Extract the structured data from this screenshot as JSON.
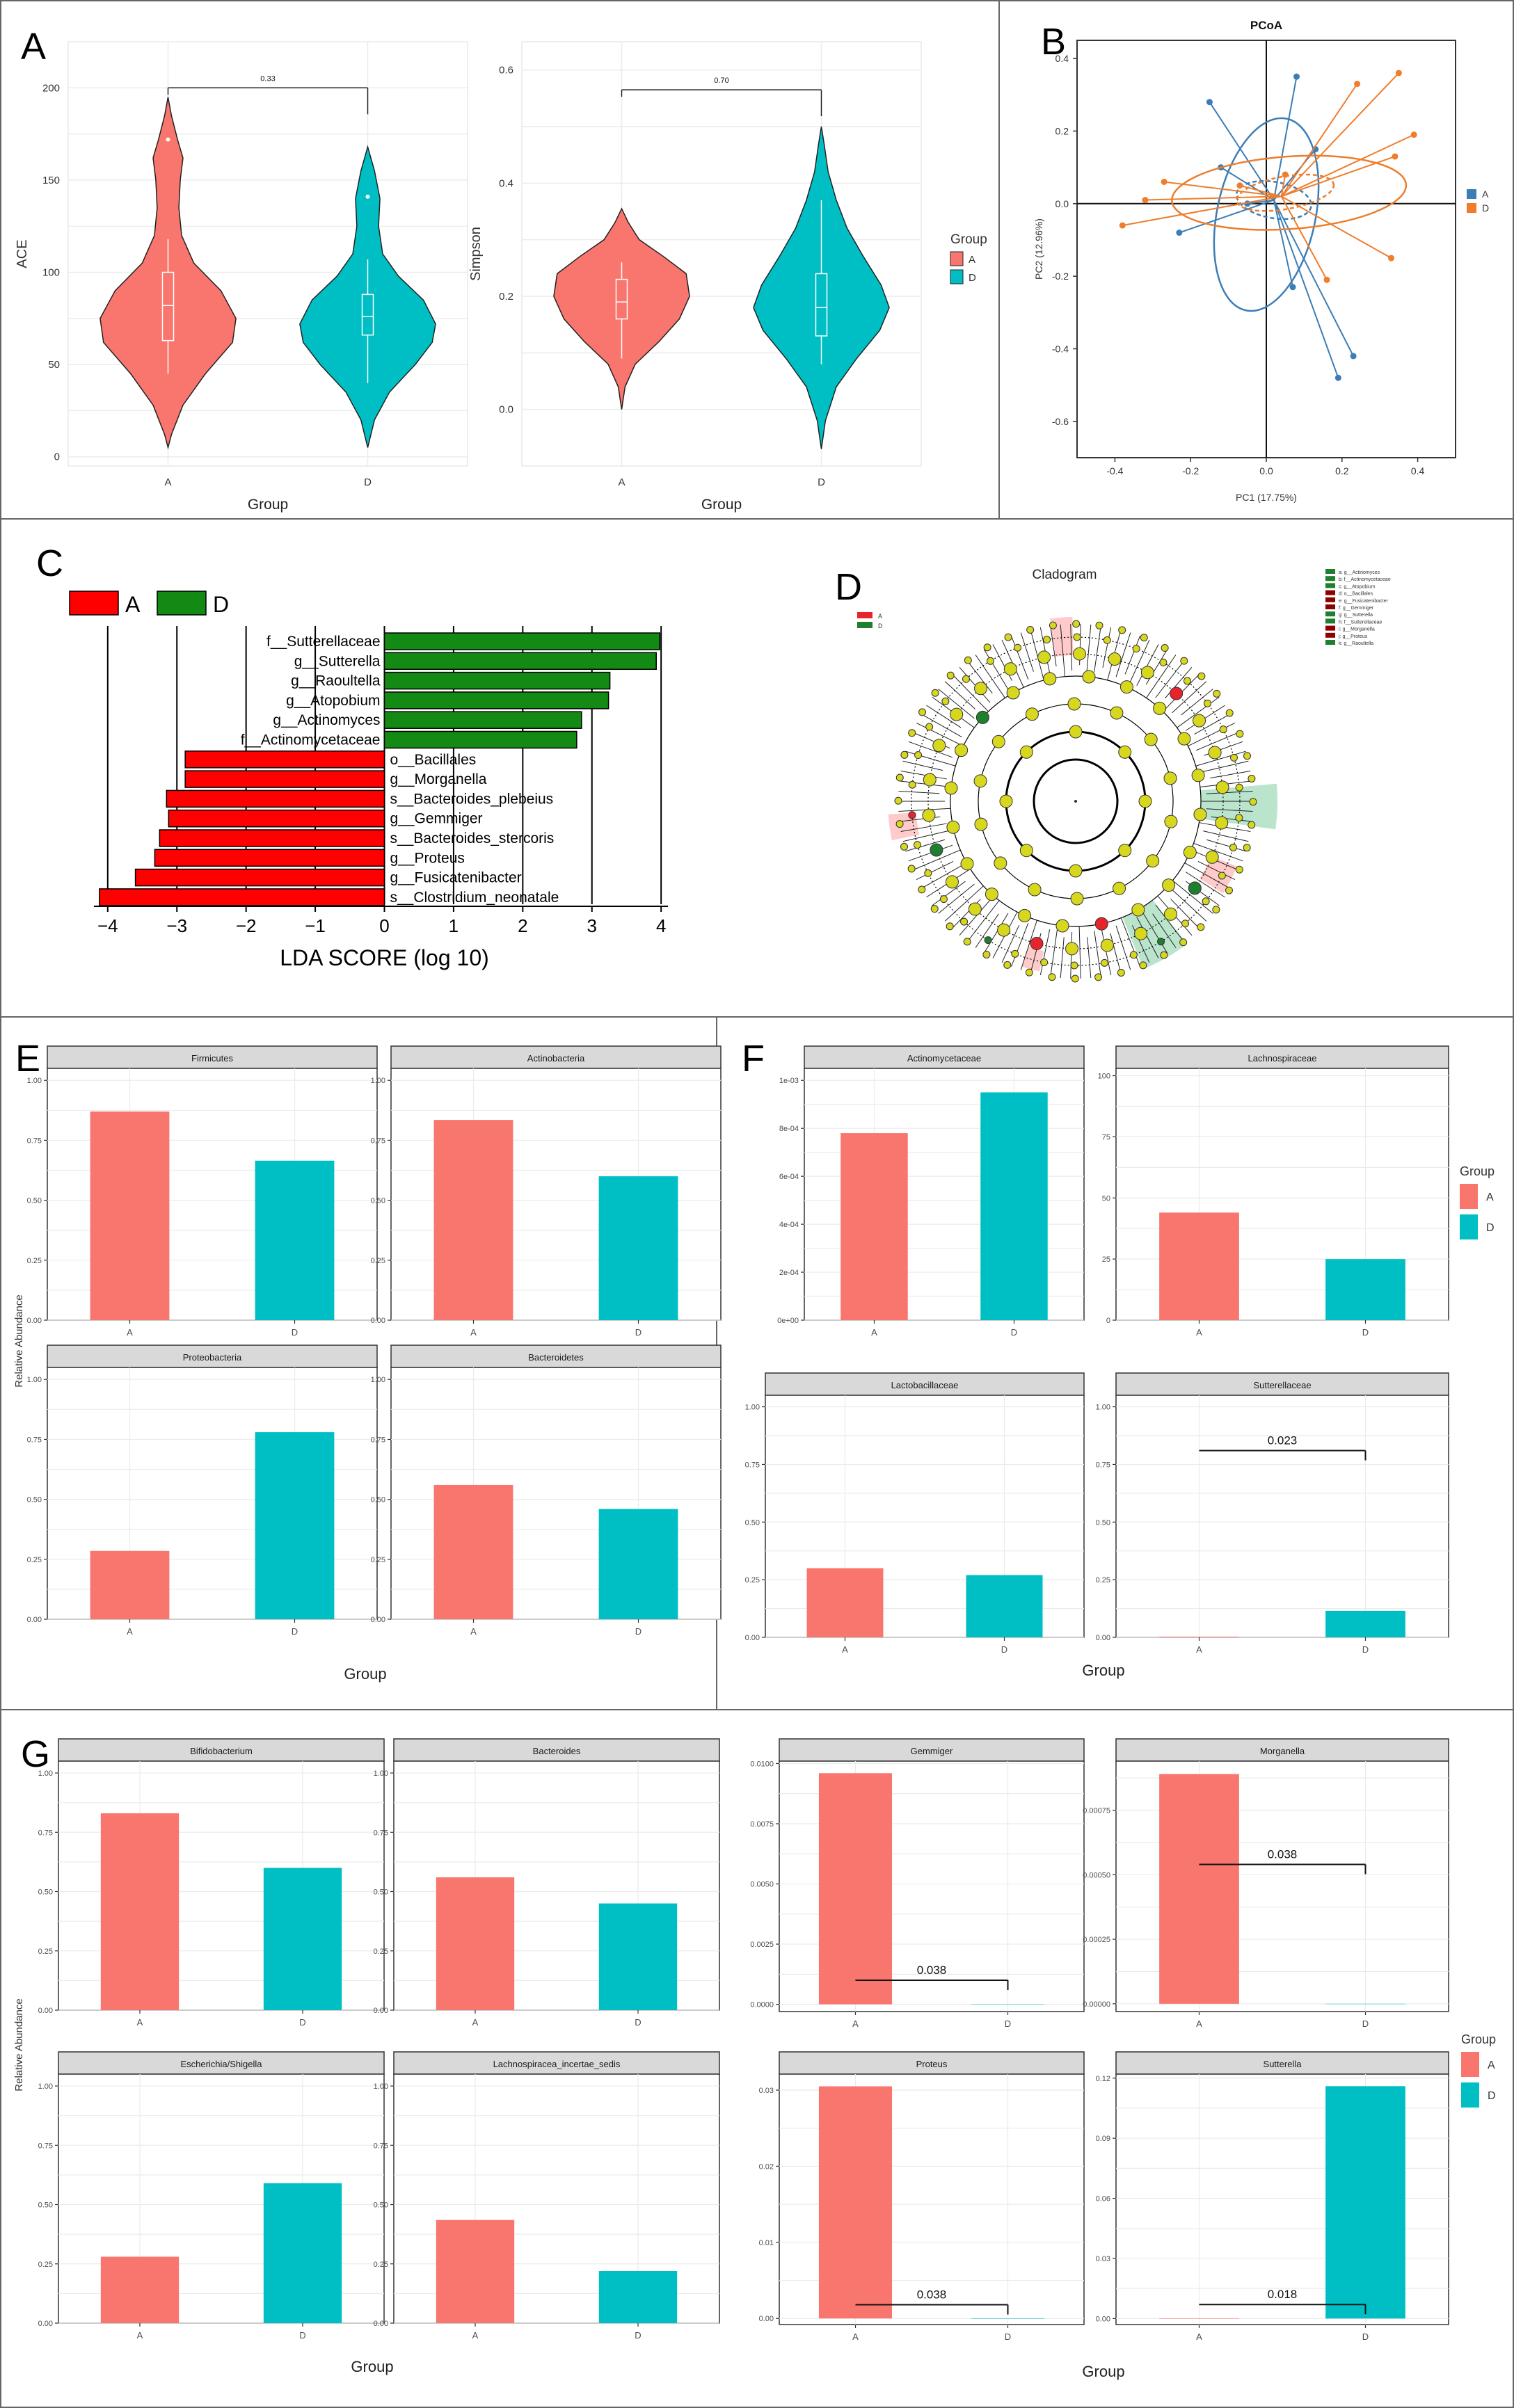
{
  "colors": {
    "A": "#F8766D",
    "D": "#00BFC4",
    "pcoaA": "#3C7DB6",
    "pcoaD": "#EE7D2C",
    "ldaA": "#FF0000",
    "ldaD": "#138A13"
  },
  "panel_letters": [
    "A",
    "B",
    "C",
    "D",
    "E",
    "F",
    "G"
  ],
  "chart_data": [
    {
      "id": "A1",
      "type": "violin",
      "ylabel": "ACE",
      "xlabel": "Group",
      "categories": [
        "A",
        "D"
      ],
      "ylim": [
        -5,
        225
      ],
      "yticks": [
        0,
        50,
        100,
        150,
        200
      ],
      "yticklabels": [
        "0",
        "50",
        "100",
        "150",
        "200"
      ],
      "medians": [
        82,
        76
      ],
      "q1": [
        63,
        66
      ],
      "q3": [
        100,
        88
      ],
      "whisker_low": [
        45,
        40
      ],
      "whisker_high": [
        118,
        107
      ],
      "outliers": [
        [
          172
        ],
        [
          141
        ]
      ],
      "p_value": "0.33",
      "bracket_y": 200
    },
    {
      "id": "A2",
      "type": "violin",
      "ylabel": "Simpson",
      "xlabel": "Group",
      "categories": [
        "A",
        "D"
      ],
      "ylim": [
        -0.1,
        0.65
      ],
      "yticks": [
        0.0,
        0.2,
        0.4,
        0.6
      ],
      "yticklabels": [
        "0.0",
        "0.2",
        "0.4",
        "0.6"
      ],
      "medians": [
        0.19,
        0.18
      ],
      "q1": [
        0.16,
        0.13
      ],
      "q3": [
        0.23,
        0.24
      ],
      "whisker_low": [
        0.09,
        0.08
      ],
      "whisker_high": [
        0.26,
        0.37
      ],
      "outliers": [
        [],
        []
      ],
      "p_value": "0.70",
      "bracket_y": 0.565,
      "legend": {
        "title": "Group",
        "entries": [
          "A",
          "D"
        ]
      }
    },
    {
      "id": "B",
      "type": "scatter",
      "title": "PCoA",
      "xlabel": "PC1  (17.75%)",
      "ylabel": "PC2  (12.96%)",
      "xlim": [
        -0.5,
        0.5
      ],
      "ylim": [
        -0.7,
        0.45
      ],
      "xticks": [
        -0.4,
        -0.2,
        0.0,
        0.2,
        0.4
      ],
      "xticklabels": [
        "-0.4",
        "-0.2",
        "0.0",
        "0.2",
        "0.4"
      ],
      "yticks": [
        -0.6,
        -0.4,
        -0.2,
        0.0,
        0.2,
        0.4
      ],
      "yticklabels": [
        "-0.6",
        "-0.4",
        "-0.2",
        "0.0",
        "0.2",
        "0.4"
      ],
      "series": [
        {
          "name": "A",
          "centroid": [
            0.02,
            0.01
          ],
          "points": [
            [
              -0.15,
              0.28
            ],
            [
              0.08,
              0.35
            ],
            [
              -0.12,
              0.1
            ],
            [
              -0.23,
              -0.08
            ],
            [
              0.13,
              0.15
            ],
            [
              0.23,
              -0.42
            ],
            [
              0.19,
              -0.48
            ],
            [
              0.07,
              -0.23
            ],
            [
              -0.05,
              0.0
            ]
          ]
        },
        {
          "name": "D",
          "centroid": [
            0.04,
            0.02
          ],
          "points": [
            [
              -0.38,
              -0.06
            ],
            [
              -0.27,
              0.06
            ],
            [
              -0.32,
              0.01
            ],
            [
              0.35,
              0.36
            ],
            [
              0.39,
              0.19
            ],
            [
              0.24,
              0.33
            ],
            [
              0.34,
              0.13
            ],
            [
              0.33,
              -0.15
            ],
            [
              0.16,
              -0.21
            ],
            [
              0.05,
              0.08
            ],
            [
              -0.07,
              0.05
            ]
          ]
        }
      ],
      "legend": {
        "entries": [
          "A",
          "D"
        ]
      }
    },
    {
      "id": "C",
      "type": "bar",
      "orientation": "horizontal",
      "xlabel": "LDA SCORE (log 10)",
      "xlim": [
        -4.3,
        4.3
      ],
      "xticks": [
        -4,
        -3,
        -2,
        -1,
        0,
        1,
        2,
        3,
        4
      ],
      "xticklabels": [
        "−4",
        "−3",
        "−2",
        "−1",
        "0",
        "1",
        "2",
        "3",
        "4"
      ],
      "legend": {
        "entries": [
          "A",
          "D"
        ]
      },
      "categories": [
        "f__Sutterellaceae",
        "g__Sutterella",
        "g__Raoultella",
        "g__Atopobium",
        "g__Actinomyces",
        "f__Actinomycetaceae",
        "o__Bacillales",
        "g__Morganella",
        "s__Bacteroides_plebeius",
        "g__Gemmiger",
        "s__Bacteroides_stercoris",
        "g__Proteus",
        "g__Fusicatenibacter",
        "s__Clostridium_neonatale"
      ],
      "values": [
        3.98,
        3.93,
        3.26,
        3.24,
        2.85,
        2.78,
        -2.88,
        -2.88,
        -3.15,
        -3.12,
        -3.25,
        -3.32,
        -3.6,
        -4.12
      ],
      "groups": [
        "D",
        "D",
        "D",
        "D",
        "D",
        "D",
        "A",
        "A",
        "A",
        "A",
        "A",
        "A",
        "A",
        "A"
      ]
    },
    {
      "id": "D",
      "type": "cladogram",
      "title": "Cladogram",
      "legend_groups": [
        "A",
        "D"
      ],
      "legend_entries": [
        "a: g__Actinomyces",
        "b: f__Actinomycetaceae",
        "c: g__Atopobium",
        "d: o__Bacillales",
        "e: g__Fusicatenibacter",
        "f: g__Gemmiger",
        "g: g__Sutterella",
        "h: f__Sutterellaceae",
        "i: g__Morganella",
        "j: g__Proteus",
        "k: g__Raoultella"
      ]
    },
    {
      "id": "E",
      "type": "bar",
      "facets": true,
      "xlabel": "Group",
      "ylabel": "Relative Abundance",
      "panels": [
        {
          "title": "Firmicutes",
          "categories": [
            "A",
            "D"
          ],
          "values": [
            0.87,
            0.665
          ],
          "ylim": [
            0,
            1.05
          ],
          "yticks": [
            0,
            0.25,
            0.5,
            0.75,
            1.0
          ],
          "yticklabels": [
            "0.00",
            "0.25",
            "0.50",
            "0.75",
            "1.00"
          ],
          "show_yticks": true,
          "show_xticks": true
        },
        {
          "title": "Actinobacteria",
          "categories": [
            "A",
            "D"
          ],
          "values": [
            0.835,
            0.6
          ],
          "ylim": [
            0,
            1.05
          ],
          "yticks": [
            0,
            0.25,
            0.5,
            0.75,
            1.0
          ],
          "yticklabels": [
            "0.00",
            "0.25",
            "0.50",
            "0.75",
            "1.00"
          ],
          "show_yticks": true,
          "show_xticks": true
        },
        {
          "title": "Proteobacteria",
          "categories": [
            "A",
            "D"
          ],
          "values": [
            0.285,
            0.78
          ],
          "ylim": [
            0,
            1.05
          ],
          "yticks": [
            0,
            0.25,
            0.5,
            0.75,
            1.0
          ],
          "yticklabels": [
            "0.00",
            "0.25",
            "0.50",
            "0.75",
            "1.00"
          ],
          "show_yticks": true,
          "show_xticks": true
        },
        {
          "title": "Bacteroidetes",
          "categories": [
            "A",
            "D"
          ],
          "values": [
            0.56,
            0.46
          ],
          "ylim": [
            0,
            1.05
          ],
          "yticks": [
            0,
            0.25,
            0.5,
            0.75,
            1.0
          ],
          "yticklabels": [
            "0.00",
            "0.25",
            "0.50",
            "0.75",
            "1.00"
          ],
          "show_yticks": true,
          "show_xticks": true
        }
      ]
    },
    {
      "id": "F",
      "type": "bar",
      "facets": true,
      "xlabel": "Group",
      "legend": {
        "title": "Group",
        "entries": [
          "A",
          "D"
        ]
      },
      "panels": [
        {
          "title": "Actinomycetaceae",
          "categories": [
            "A",
            "D"
          ],
          "values": [
            0.78,
            0.95
          ],
          "ylim": [
            0,
            1.05
          ],
          "yticks": [
            0,
            0.2,
            0.4,
            0.6,
            0.8,
            1.0
          ],
          "yticklabels": [
            "0e+00",
            "2e-04",
            "4e-04",
            "6e-04",
            "8e-04",
            "1e-03"
          ],
          "show_yticks": true,
          "show_xticks": true
        },
        {
          "title": "Lachnospiraceae",
          "categories": [
            "A",
            "D"
          ],
          "values": [
            44,
            25
          ],
          "ylim": [
            0,
            103
          ],
          "yticks": [
            0,
            25,
            50,
            75,
            100
          ],
          "yticklabels": [
            "0",
            "25",
            "50",
            "75",
            "100"
          ],
          "show_yticks": true,
          "show_xticks": true
        },
        {
          "title": "Lactobacillaceae",
          "categories": [
            "A",
            "D"
          ],
          "values": [
            0.3,
            0.27
          ],
          "ylim": [
            0,
            1.05
          ],
          "yticks": [
            0,
            0.25,
            0.5,
            0.75,
            1.0
          ],
          "yticklabels": [
            "0.00",
            "0.25",
            "0.50",
            "0.75",
            "1.00"
          ],
          "show_yticks": true,
          "show_xticks": true
        },
        {
          "title": "Sutterellaceae",
          "categories": [
            "A",
            "D"
          ],
          "values": [
            0.003,
            0.115
          ],
          "ylim": [
            0,
            1.05
          ],
          "yticks": [
            0,
            0.25,
            0.5,
            0.75,
            1.0
          ],
          "yticklabels": [
            "0.00",
            "0.25",
            "0.50",
            "0.75",
            "1.00"
          ],
          "show_yticks": true,
          "show_xticks": true,
          "p_value": "0.023",
          "bracket_y": 0.81
        }
      ]
    },
    {
      "id": "G",
      "type": "bar",
      "facets": true,
      "xlabel": "Group",
      "ylabel": "Relative Abundance",
      "legend": {
        "title": "Group",
        "entries": [
          "A",
          "D"
        ]
      },
      "panels": [
        {
          "title": "Bifidobacterium",
          "categories": [
            "A",
            "D"
          ],
          "values": [
            0.83,
            0.6
          ],
          "ylim": [
            0,
            1.05
          ],
          "yticks": [
            0,
            0.25,
            0.5,
            0.75,
            1.0
          ],
          "yticklabels": [
            "0.00",
            "0.25",
            "0.50",
            "0.75",
            "1.00"
          ],
          "show_yticks": true,
          "show_xticks": true
        },
        {
          "title": "Bacteroides",
          "categories": [
            "A",
            "D"
          ],
          "values": [
            0.56,
            0.45
          ],
          "ylim": [
            0,
            1.05
          ],
          "yticks": [
            0,
            0.25,
            0.5,
            0.75,
            1.0
          ],
          "yticklabels": [
            "0.00",
            "0.25",
            "0.50",
            "0.75",
            "1.00"
          ],
          "show_yticks": true,
          "show_xticks": true
        },
        {
          "title": "Gemmiger",
          "categories": [
            "A",
            "D"
          ],
          "values": [
            0.0096,
            0.0
          ],
          "ylim": [
            -0.0003,
            0.0101
          ],
          "yticks": [
            0,
            0.0025,
            0.005,
            0.0075,
            0.01
          ],
          "yticklabels": [
            "0.0000",
            "0.0025",
            "0.0050",
            "0.0075",
            "0.0100"
          ],
          "show_yticks": true,
          "show_xticks": true,
          "p_value": "0.038",
          "bracket_y": 0.001
        },
        {
          "title": "Morganella",
          "categories": [
            "A",
            "D"
          ],
          "values": [
            0.00089,
            0.0
          ],
          "ylim": [
            -3e-05,
            0.00094
          ],
          "yticks": [
            0,
            0.00025,
            0.0005,
            0.00075
          ],
          "yticklabels": [
            "0.00000",
            "0.00025",
            "0.00050",
            "0.00075"
          ],
          "show_yticks": true,
          "show_xticks": true,
          "p_value": "0.038",
          "bracket_y": 0.00054
        },
        {
          "title": "Escherichia/Shigella",
          "categories": [
            "A",
            "D"
          ],
          "values": [
            0.28,
            0.59
          ],
          "ylim": [
            0,
            1.05
          ],
          "yticks": [
            0,
            0.25,
            0.5,
            0.75,
            1.0
          ],
          "yticklabels": [
            "0.00",
            "0.25",
            "0.50",
            "0.75",
            "1.00"
          ],
          "show_yticks": true,
          "show_xticks": true
        },
        {
          "title": "Lachnospiracea_incertae_sedis",
          "categories": [
            "A",
            "D"
          ],
          "values": [
            0.435,
            0.22
          ],
          "ylim": [
            0,
            1.05
          ],
          "yticks": [
            0,
            0.25,
            0.5,
            0.75,
            1.0
          ],
          "yticklabels": [
            "0.00",
            "0.25",
            "0.50",
            "0.75",
            "1.00"
          ],
          "show_yticks": true,
          "show_xticks": true
        },
        {
          "title": "Proteus",
          "categories": [
            "A",
            "D"
          ],
          "values": [
            0.0305,
            0.0
          ],
          "ylim": [
            -0.0008,
            0.0321
          ],
          "yticks": [
            0,
            0.01,
            0.02,
            0.03
          ],
          "yticklabels": [
            "0.00",
            "0.01",
            "0.02",
            "0.03"
          ],
          "show_yticks": true,
          "show_xticks": true,
          "p_value": "0.038",
          "bracket_y": 0.0018
        },
        {
          "title": "Sutterella",
          "categories": [
            "A",
            "D"
          ],
          "values": [
            0.0,
            0.116
          ],
          "ylim": [
            -0.003,
            0.122
          ],
          "yticks": [
            0,
            0.03,
            0.06,
            0.09,
            0.12
          ],
          "yticklabels": [
            "0.00",
            "0.03",
            "0.06",
            "0.09",
            "0.12"
          ],
          "show_yticks": true,
          "show_xticks": true,
          "p_value": "0.018",
          "bracket_y": 0.007
        }
      ]
    }
  ]
}
